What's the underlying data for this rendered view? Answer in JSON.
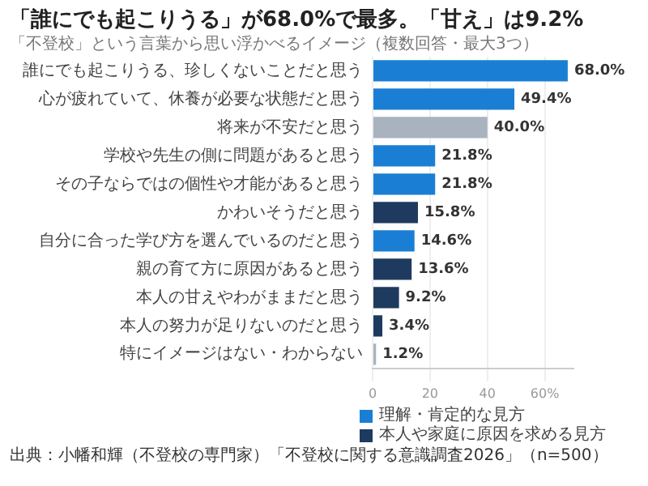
{
  "chart_data": {
    "type": "bar",
    "orientation": "horizontal",
    "stacked": true,
    "title": "「誰にでも起こりうる」が68.0%で最多。「甘え」は9.2%",
    "subtitle": "「不登校」という言葉から思い浮かべるイメージ（複数回答・最大3つ）",
    "categories": [
      "誰にでも起こりうる、珍しくないことだと思う",
      "心が疲れていて、休養が必要な状態だと思う",
      "将来が不安だと思う",
      "学校や先生の側に問題があると思う",
      "その子ならではの個性や才能があると思う",
      "かわいそうだと思う",
      "自分に合った学び方を選んでいるのだと思う",
      "親の育て方に原因があると思う",
      "本人の甘えやわがままだと思う",
      "本人の努力が足りないのだと思う",
      "特にイメージはない・わからない"
    ],
    "series": [
      {
        "name": "理解・肯定的な見方",
        "color": "#1a7fd4",
        "values": [
          68.0,
          49.4,
          null,
          21.8,
          21.8,
          null,
          14.6,
          null,
          null,
          null,
          null
        ],
        "value_labels": [
          "68.0%",
          "49.4%",
          null,
          "21.8%",
          "21.8%",
          null,
          "14.6%",
          null,
          null,
          null,
          null
        ]
      },
      {
        "name": "本人や家庭に原因を求める見方",
        "color": "#1f3a5f",
        "values": [
          null,
          null,
          null,
          null,
          null,
          15.8,
          null,
          13.6,
          9.2,
          3.4,
          null
        ],
        "value_labels": [
          null,
          null,
          null,
          null,
          null,
          "15.8%",
          null,
          "13.6%",
          "9.2%",
          "3.4%",
          null
        ]
      },
      {
        "color": "#a9b3bf",
        "values": [
          null,
          null,
          40.0,
          null,
          null,
          null,
          null,
          null,
          null,
          null,
          1.2
        ],
        "value_labels": [
          null,
          null,
          "40.0%",
          null,
          null,
          null,
          null,
          null,
          null,
          null,
          "1.2%"
        ]
      }
    ],
    "xlim": [
      0,
      70
    ],
    "xticks": [
      0,
      20,
      40,
      {
        "value": 60,
        "label": "60%"
      }
    ],
    "grid": "x",
    "legend": "bottom right",
    "annotations": [
      "出典：小幡和輝（不登校の専門家）「不登校に関する意識調査2026」（n=500）"
    ]
  }
}
